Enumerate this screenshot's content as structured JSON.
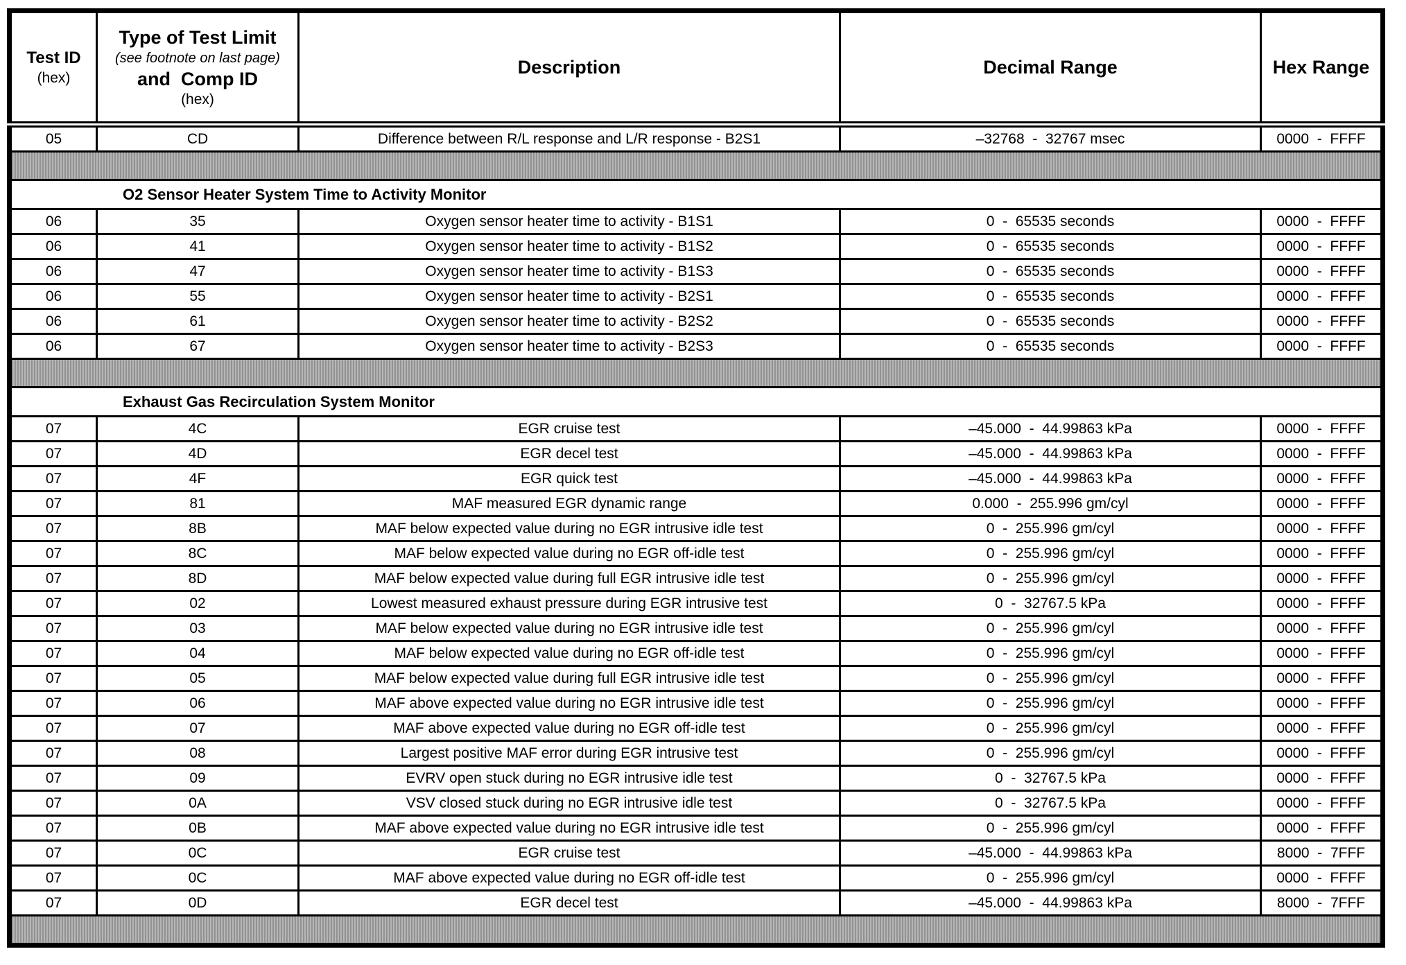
{
  "table": {
    "columns": {
      "test_id": {
        "title": "Test ID",
        "subtitle": "(hex)"
      },
      "type_comp": {
        "title": "Type of Test Limit",
        "note": "(see footnote on last page)",
        "title2": "and  Comp ID",
        "subtitle": "(hex)"
      },
      "description": "Description",
      "decimal_range": "Decimal Range",
      "hex_range": "Hex Range"
    },
    "sections": [
      {
        "type": "rows",
        "rows": [
          {
            "test_id": "05",
            "comp_id": "CD",
            "description": "Difference between R/L response and L/R response - B2S1",
            "decimal_range": "–32768  -  32767 msec",
            "hex_range": "0000  -  FFFF"
          }
        ]
      },
      {
        "type": "separator"
      },
      {
        "type": "section_header",
        "title": "O2 Sensor Heater System Time to Activity Monitor"
      },
      {
        "type": "rows",
        "rows": [
          {
            "test_id": "06",
            "comp_id": "35",
            "description": "Oxygen sensor heater time to activity - B1S1",
            "decimal_range": "0  -  65535 seconds",
            "hex_range": "0000  -  FFFF"
          },
          {
            "test_id": "06",
            "comp_id": "41",
            "description": "Oxygen sensor heater time to activity - B1S2",
            "decimal_range": "0  -  65535 seconds",
            "hex_range": "0000  -  FFFF"
          },
          {
            "test_id": "06",
            "comp_id": "47",
            "description": "Oxygen sensor heater time to activity - B1S3",
            "decimal_range": "0  -  65535 seconds",
            "hex_range": "0000  -  FFFF"
          },
          {
            "test_id": "06",
            "comp_id": "55",
            "description": "Oxygen sensor heater time to activity - B2S1",
            "decimal_range": "0  -  65535 seconds",
            "hex_range": "0000  -  FFFF"
          },
          {
            "test_id": "06",
            "comp_id": "61",
            "description": "Oxygen sensor heater time to activity - B2S2",
            "decimal_range": "0  -  65535 seconds",
            "hex_range": "0000  -  FFFF"
          },
          {
            "test_id": "06",
            "comp_id": "67",
            "description": "Oxygen sensor heater time to activity - B2S3",
            "decimal_range": "0  -  65535 seconds",
            "hex_range": "0000  -  FFFF"
          }
        ]
      },
      {
        "type": "separator"
      },
      {
        "type": "section_header",
        "title": "Exhaust Gas Recirculation System Monitor"
      },
      {
        "type": "rows",
        "rows": [
          {
            "test_id": "07",
            "comp_id": "4C",
            "description": "EGR cruise test",
            "decimal_range": "–45.000  -  44.99863 kPa",
            "hex_range": "0000  -  FFFF"
          },
          {
            "test_id": "07",
            "comp_id": "4D",
            "description": "EGR decel test",
            "decimal_range": "–45.000  -  44.99863 kPa",
            "hex_range": "0000  -  FFFF"
          },
          {
            "test_id": "07",
            "comp_id": "4F",
            "description": "EGR quick test",
            "decimal_range": "–45.000  -  44.99863 kPa",
            "hex_range": "0000  -  FFFF"
          },
          {
            "test_id": "07",
            "comp_id": "81",
            "description": "MAF measured EGR dynamic range",
            "decimal_range": "0.000  -  255.996 gm/cyl",
            "hex_range": "0000  -  FFFF"
          },
          {
            "test_id": "07",
            "comp_id": "8B",
            "description": "MAF below expected value during no EGR intrusive idle test",
            "decimal_range": "0  -  255.996 gm/cyl",
            "hex_range": "0000  -  FFFF"
          },
          {
            "test_id": "07",
            "comp_id": "8C",
            "description": "MAF below expected value during no EGR off-idle test",
            "decimal_range": "0  -  255.996 gm/cyl",
            "hex_range": "0000  -  FFFF"
          },
          {
            "test_id": "07",
            "comp_id": "8D",
            "description": "MAF below expected value during full EGR intrusive idle test",
            "decimal_range": "0  -  255.996 gm/cyl",
            "hex_range": "0000  -  FFFF"
          },
          {
            "test_id": "07",
            "comp_id": "02",
            "description": "Lowest measured exhaust pressure during EGR intrusive test",
            "decimal_range": "0  -  32767.5 kPa",
            "hex_range": "0000  -  FFFF"
          },
          {
            "test_id": "07",
            "comp_id": "03",
            "description": "MAF below expected value during no EGR intrusive idle test",
            "decimal_range": "0  -  255.996 gm/cyl",
            "hex_range": "0000  -  FFFF"
          },
          {
            "test_id": "07",
            "comp_id": "04",
            "description": "MAF below expected value during no EGR off-idle test",
            "decimal_range": "0  -  255.996 gm/cyl",
            "hex_range": "0000  -  FFFF"
          },
          {
            "test_id": "07",
            "comp_id": "05",
            "description": "MAF below expected value during full EGR intrusive idle test",
            "decimal_range": "0  -  255.996 gm/cyl",
            "hex_range": "0000  -  FFFF"
          },
          {
            "test_id": "07",
            "comp_id": "06",
            "description": "MAF above expected value during no EGR intrusive idle test",
            "decimal_range": "0  -  255.996 gm/cyl",
            "hex_range": "0000  -  FFFF"
          },
          {
            "test_id": "07",
            "comp_id": "07",
            "description": "MAF above expected value during no EGR off-idle test",
            "decimal_range": "0  -  255.996 gm/cyl",
            "hex_range": "0000  -  FFFF"
          },
          {
            "test_id": "07",
            "comp_id": "08",
            "description": "Largest positive MAF error during EGR intrusive test",
            "decimal_range": "0  -  255.996 gm/cyl",
            "hex_range": "0000  -  FFFF"
          },
          {
            "test_id": "07",
            "comp_id": "09",
            "description": "EVRV open stuck during no EGR intrusive idle test",
            "decimal_range": "0  -  32767.5 kPa",
            "hex_range": "0000  -  FFFF"
          },
          {
            "test_id": "07",
            "comp_id": "0A",
            "description": "VSV closed stuck during no EGR intrusive idle test",
            "decimal_range": "0  -  32767.5 kPa",
            "hex_range": "0000  -  FFFF"
          },
          {
            "test_id": "07",
            "comp_id": "0B",
            "description": "MAF above expected value during no EGR intrusive idle test",
            "decimal_range": "0  -  255.996 gm/cyl",
            "hex_range": "0000  -  FFFF"
          },
          {
            "test_id": "07",
            "comp_id": "0C",
            "description": "EGR cruise test",
            "decimal_range": "–45.000  -  44.99863 kPa",
            "hex_range": "8000  -  7FFF"
          },
          {
            "test_id": "07",
            "comp_id": "0C",
            "description": "MAF above expected value during no EGR off-idle test",
            "decimal_range": "0  -  255.996 gm/cyl",
            "hex_range": "0000  -  FFFF"
          },
          {
            "test_id": "07",
            "comp_id": "0D",
            "description": "EGR decel test",
            "decimal_range": "–45.000  -  44.99863 kPa",
            "hex_range": "8000  -  7FFF"
          }
        ]
      },
      {
        "type": "separator"
      }
    ]
  }
}
